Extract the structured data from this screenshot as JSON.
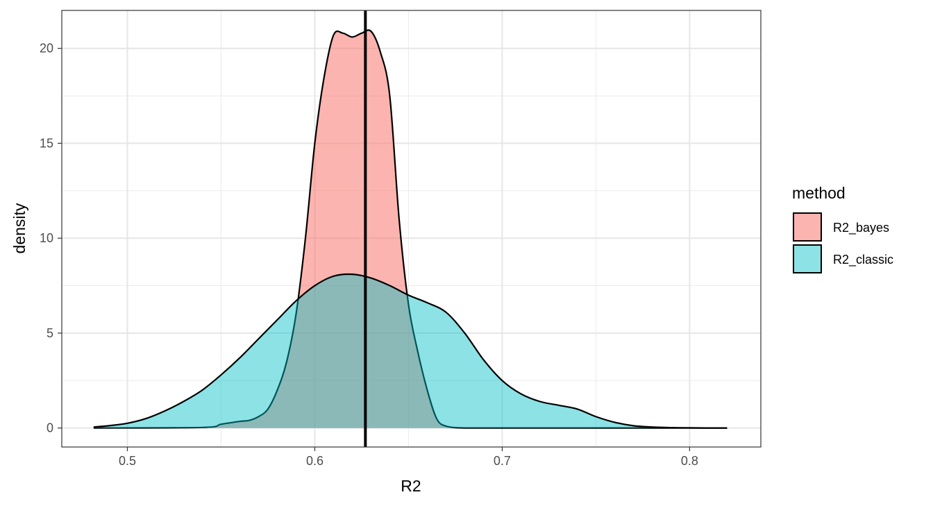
{
  "chart_data": {
    "type": "area",
    "subtype": "density",
    "xlabel": "R2",
    "ylabel": "density",
    "xlim": [
      0.465,
      0.838
    ],
    "ylim": [
      -1.0,
      22.0
    ],
    "x_ticks": [
      0.5,
      0.6,
      0.7,
      0.8
    ],
    "x_tick_labels": [
      "0.5",
      "0.6",
      "0.7",
      "0.8"
    ],
    "y_ticks": [
      0,
      5,
      10,
      15,
      20
    ],
    "y_tick_labels": [
      "0",
      "5",
      "10",
      "15",
      "20"
    ],
    "x_minor_ticks": [
      0.55,
      0.65,
      0.75
    ],
    "y_minor_ticks": [
      2.5,
      7.5,
      12.5,
      17.5
    ],
    "grid": true,
    "legend": {
      "title": "method",
      "position": "right",
      "entries": [
        "R2_bayes",
        "R2_classic"
      ]
    },
    "vline": 0.627,
    "series": [
      {
        "name": "R2_bayes",
        "color": "#F8766D",
        "opacity": 0.55,
        "x": [
          0.482,
          0.54,
          0.55,
          0.56,
          0.565,
          0.57,
          0.575,
          0.58,
          0.585,
          0.59,
          0.595,
          0.6,
          0.605,
          0.61,
          0.615,
          0.62,
          0.625,
          0.63,
          0.635,
          0.64,
          0.645,
          0.65,
          0.655,
          0.66,
          0.665,
          0.67,
          0.68,
          0.7,
          0.8,
          0.82
        ],
        "y": [
          0.0,
          0.03,
          0.2,
          0.35,
          0.4,
          0.6,
          1.0,
          2.0,
          3.5,
          6.0,
          10.0,
          15.0,
          18.5,
          20.7,
          20.8,
          20.6,
          20.8,
          20.9,
          19.8,
          17.5,
          11.0,
          6.5,
          4.0,
          2.0,
          0.5,
          0.1,
          0.0,
          0.0,
          0.0,
          0.0
        ]
      },
      {
        "name": "R2_classic",
        "color": "#00BFC4",
        "opacity": 0.45,
        "x": [
          0.482,
          0.49,
          0.5,
          0.51,
          0.52,
          0.53,
          0.54,
          0.55,
          0.56,
          0.57,
          0.58,
          0.59,
          0.6,
          0.61,
          0.62,
          0.63,
          0.64,
          0.65,
          0.66,
          0.67,
          0.68,
          0.69,
          0.7,
          0.71,
          0.72,
          0.73,
          0.74,
          0.75,
          0.76,
          0.77,
          0.78,
          0.79,
          0.8,
          0.81,
          0.82
        ],
        "y": [
          0.05,
          0.12,
          0.25,
          0.5,
          0.9,
          1.4,
          2.0,
          2.8,
          3.7,
          4.7,
          5.7,
          6.7,
          7.5,
          8.0,
          8.1,
          7.9,
          7.5,
          7.0,
          6.6,
          6.1,
          5.0,
          3.6,
          2.5,
          1.8,
          1.4,
          1.2,
          1.0,
          0.6,
          0.3,
          0.12,
          0.05,
          0.02,
          0.01,
          0.0,
          0.0
        ]
      }
    ]
  }
}
